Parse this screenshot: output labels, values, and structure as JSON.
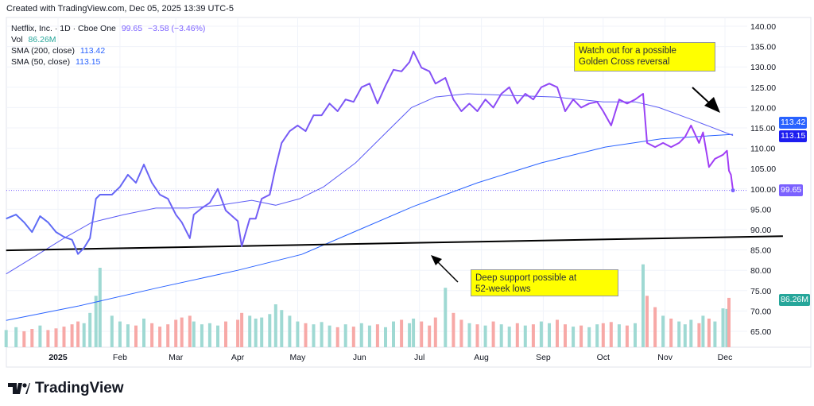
{
  "header": {
    "created": "Created with TradingView.com, Dec 05, 2025 13:39 UTC-5"
  },
  "legend": {
    "symbol": "Netflix, Inc. · 1D · Cboe One",
    "last": "99.65",
    "change": "−3.58 (−3.46%)",
    "vol_label": "Vol",
    "vol_value": "86.26M",
    "sma200_label": "SMA (200, close)",
    "sma200_value": "113.42",
    "sma50_label": "SMA (50, close)",
    "sma50_value": "113.15"
  },
  "annotations": {
    "top": "Watch out for a possible\nGolden Cross reversal",
    "bottom": "Deep support possible at\n52-week lows"
  },
  "price_tags": {
    "sma200": "113.42",
    "sma50": "113.15",
    "last": "99.65",
    "volume": "86.26M"
  },
  "colors": {
    "sma200": "#2962ff",
    "sma50": "#1e1ef0",
    "price_start": "#5b6ef5",
    "price_end": "#a23cf5",
    "last": "#7b61ff",
    "vol_up": "#9fd9d3",
    "vol_down": "#f7a9a7",
    "vol_tag": "#26a69a",
    "support": "#000000",
    "note_bg": "#ffff00"
  },
  "logo": {
    "text": "TradingView"
  },
  "chart_data": {
    "type": "line",
    "title": "",
    "y_ticks": [
      "140.00",
      "135.00",
      "130.00",
      "125.00",
      "120.00",
      "115.00",
      "110.00",
      "105.00",
      "100.00",
      "95.00",
      "90.00",
      "85.00",
      "80.00",
      "75.00",
      "70.00",
      "65.00"
    ],
    "ylim": [
      63,
      141
    ],
    "x_ticks": [
      {
        "label": "2025",
        "date": "2025-01-01"
      },
      {
        "label": "Feb",
        "date": "2025-02-01"
      },
      {
        "label": "Mar",
        "date": "2025-03-01"
      },
      {
        "label": "Apr",
        "date": "2025-04-01"
      },
      {
        "label": "May",
        "date": "2025-05-01"
      },
      {
        "label": "Jun",
        "date": "2025-06-01"
      },
      {
        "label": "Jul",
        "date": "2025-07-01"
      },
      {
        "label": "Aug",
        "date": "2025-08-01"
      },
      {
        "label": "Sep",
        "date": "2025-09-01"
      },
      {
        "label": "Oct",
        "date": "2025-10-01"
      },
      {
        "label": "Nov",
        "date": "2025-11-01"
      },
      {
        "label": "Dec",
        "date": "2025-12-01"
      }
    ],
    "grid": true,
    "price": [
      [
        "2024-12-06",
        92.7
      ],
      [
        "2024-12-11",
        93.7
      ],
      [
        "2024-12-15",
        91.8
      ],
      [
        "2024-12-19",
        89.4
      ],
      [
        "2024-12-23",
        93.3
      ],
      [
        "2024-12-27",
        91.8
      ],
      [
        "2024-12-31",
        89.4
      ],
      [
        "2025-01-04",
        88.2
      ],
      [
        "2025-01-08",
        87.5
      ],
      [
        "2025-01-11",
        84.0
      ],
      [
        "2025-01-14",
        85.5
      ],
      [
        "2025-01-17",
        87.9
      ],
      [
        "2025-01-20",
        97.6
      ],
      [
        "2025-01-22",
        98.6
      ],
      [
        "2025-01-28",
        98.6
      ],
      [
        "2025-02-01",
        100.5
      ],
      [
        "2025-02-05",
        103.5
      ],
      [
        "2025-02-09",
        101.5
      ],
      [
        "2025-02-13",
        106.0
      ],
      [
        "2025-02-17",
        101.5
      ],
      [
        "2025-02-21",
        98.6
      ],
      [
        "2025-02-25",
        97.6
      ],
      [
        "2025-03-01",
        93.7
      ],
      [
        "2025-03-04",
        91.8
      ],
      [
        "2025-03-08",
        87.9
      ],
      [
        "2025-03-10",
        93.7
      ],
      [
        "2025-03-14",
        95.3
      ],
      [
        "2025-03-18",
        96.6
      ],
      [
        "2025-03-22",
        100.0
      ],
      [
        "2025-03-26",
        94.7
      ],
      [
        "2025-04-01",
        92.1
      ],
      [
        "2025-04-03",
        85.9
      ],
      [
        "2025-04-07",
        92.7
      ],
      [
        "2025-04-10",
        92.7
      ],
      [
        "2025-04-13",
        97.6
      ],
      [
        "2025-04-17",
        98.6
      ],
      [
        "2025-04-20",
        105.4
      ],
      [
        "2025-04-23",
        111.3
      ],
      [
        "2025-04-27",
        114.2
      ],
      [
        "2025-05-01",
        115.6
      ],
      [
        "2025-05-05",
        114.2
      ],
      [
        "2025-05-09",
        118.1
      ],
      [
        "2025-05-13",
        118.1
      ],
      [
        "2025-05-17",
        121.0
      ],
      [
        "2025-05-21",
        119.1
      ],
      [
        "2025-05-25",
        122.0
      ],
      [
        "2025-05-29",
        121.4
      ],
      [
        "2025-06-02",
        125.0
      ],
      [
        "2025-06-06",
        125.9
      ],
      [
        "2025-06-10",
        121.0
      ],
      [
        "2025-06-14",
        125.4
      ],
      [
        "2025-06-18",
        129.3
      ],
      [
        "2025-06-22",
        128.9
      ],
      [
        "2025-06-26",
        131.2
      ],
      [
        "2025-06-28",
        133.8
      ],
      [
        "2025-07-02",
        129.8
      ],
      [
        "2025-07-06",
        128.9
      ],
      [
        "2025-07-09",
        125.9
      ],
      [
        "2025-07-14",
        127.3
      ],
      [
        "2025-07-18",
        122.0
      ],
      [
        "2025-07-22",
        119.1
      ],
      [
        "2025-07-26",
        121.0
      ],
      [
        "2025-07-30",
        119.1
      ],
      [
        "2025-08-03",
        122.0
      ],
      [
        "2025-08-07",
        120.0
      ],
      [
        "2025-08-11",
        123.4
      ],
      [
        "2025-08-15",
        125.0
      ],
      [
        "2025-08-19",
        121.0
      ],
      [
        "2025-08-23",
        123.4
      ],
      [
        "2025-08-27",
        122.0
      ],
      [
        "2025-08-31",
        125.0
      ],
      [
        "2025-09-04",
        125.9
      ],
      [
        "2025-09-08",
        125.0
      ],
      [
        "2025-09-12",
        119.1
      ],
      [
        "2025-09-16",
        122.0
      ],
      [
        "2025-09-20",
        120.0
      ],
      [
        "2025-09-24",
        121.0
      ],
      [
        "2025-09-28",
        121.4
      ],
      [
        "2025-10-01",
        119.1
      ],
      [
        "2025-10-05",
        115.6
      ],
      [
        "2025-10-09",
        122.0
      ],
      [
        "2025-10-13",
        121.0
      ],
      [
        "2025-10-17",
        122.0
      ],
      [
        "2025-10-21",
        123.4
      ],
      [
        "2025-10-23",
        111.3
      ],
      [
        "2025-10-27",
        110.3
      ],
      [
        "2025-10-31",
        111.3
      ],
      [
        "2025-11-04",
        110.3
      ],
      [
        "2025-11-08",
        111.3
      ],
      [
        "2025-11-11",
        112.8
      ],
      [
        "2025-11-14",
        115.6
      ],
      [
        "2025-11-18",
        111.3
      ],
      [
        "2025-11-20",
        113.9
      ],
      [
        "2025-11-23",
        105.4
      ],
      [
        "2025-11-26",
        107.4
      ],
      [
        "2025-11-30",
        108.4
      ],
      [
        "2025-12-02",
        109.4
      ],
      [
        "2025-12-03",
        104.5
      ],
      [
        "2025-12-04",
        103.5
      ],
      [
        "2025-12-05",
        99.65
      ]
    ],
    "sma50": [
      [
        "2024-12-06",
        79.1
      ],
      [
        "2024-12-19",
        83.0
      ],
      [
        "2025-01-04",
        87.9
      ],
      [
        "2025-01-18",
        91.8
      ],
      [
        "2025-02-03",
        93.7
      ],
      [
        "2025-02-19",
        95.3
      ],
      [
        "2025-03-07",
        95.3
      ],
      [
        "2025-03-23",
        96.0
      ],
      [
        "2025-04-08",
        97.2
      ],
      [
        "2025-04-20",
        96.0
      ],
      [
        "2025-05-02",
        97.6
      ],
      [
        "2025-05-14",
        100.5
      ],
      [
        "2025-05-30",
        106.4
      ],
      [
        "2025-06-15",
        114.2
      ],
      [
        "2025-06-27",
        120.0
      ],
      [
        "2025-07-09",
        122.6
      ],
      [
        "2025-07-25",
        123.4
      ],
      [
        "2025-08-14",
        123.0
      ],
      [
        "2025-09-07",
        122.6
      ],
      [
        "2025-10-01",
        121.4
      ],
      [
        "2025-10-17",
        121.4
      ],
      [
        "2025-10-29",
        120.0
      ],
      [
        "2025-11-14",
        117.1
      ],
      [
        "2025-12-05",
        113.15
      ]
    ],
    "sma200": [
      [
        "2024-12-06",
        67.7
      ],
      [
        "2025-01-11",
        71.2
      ],
      [
        "2025-02-20",
        75.7
      ],
      [
        "2025-04-01",
        80.0
      ],
      [
        "2025-05-03",
        83.9
      ],
      [
        "2025-05-31",
        89.8
      ],
      [
        "2025-06-28",
        95.7
      ],
      [
        "2025-07-30",
        101.5
      ],
      [
        "2025-08-31",
        106.4
      ],
      [
        "2025-10-02",
        110.3
      ],
      [
        "2025-10-30",
        112.3
      ],
      [
        "2025-12-05",
        113.42
      ]
    ],
    "support_line": [
      [
        "2024-12-06",
        84.9
      ],
      [
        "2025-12-30",
        88.4
      ]
    ],
    "volume_millions": [
      30,
      35,
      28,
      32,
      38,
      30,
      33,
      36,
      40,
      45,
      42,
      60,
      90,
      139,
      55,
      45,
      40,
      38,
      50,
      42,
      36,
      40,
      48,
      52,
      55,
      45,
      40,
      42,
      38,
      45,
      48,
      60,
      55,
      50,
      52,
      58,
      75,
      65,
      55,
      45,
      42,
      40,
      44,
      38,
      35,
      40,
      36,
      42,
      38,
      40,
      35,
      45,
      48,
      42,
      50,
      45,
      38,
      52,
      104,
      60,
      48,
      42,
      40,
      38,
      45,
      40,
      36,
      42,
      38,
      40,
      45,
      42,
      48,
      40,
      36,
      38,
      35,
      40,
      42,
      44,
      40,
      38,
      42,
      145,
      90,
      70,
      55,
      50,
      45,
      40,
      48,
      42,
      55,
      50,
      45,
      68,
      67,
      86.26
    ]
  }
}
